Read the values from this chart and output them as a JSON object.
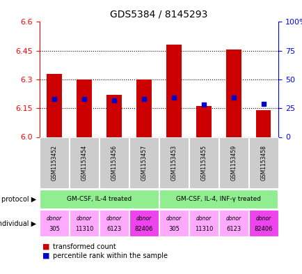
{
  "title": "GDS5384 / 8145293",
  "samples": [
    "GSM1153452",
    "GSM1153454",
    "GSM1153456",
    "GSM1153457",
    "GSM1153453",
    "GSM1153455",
    "GSM1153459",
    "GSM1153458"
  ],
  "red_values": [
    6.33,
    6.3,
    6.22,
    6.3,
    6.48,
    6.163,
    6.455,
    6.14
  ],
  "blue_values_pct": [
    33,
    33,
    32,
    33,
    34,
    28,
    34,
    29
  ],
  "y_min": 6.0,
  "y_max": 6.6,
  "y_ticks_left": [
    6.0,
    6.15,
    6.3,
    6.45,
    6.6
  ],
  "y_ticks_right": [
    0,
    25,
    50,
    75,
    100
  ],
  "bar_color": "#cc0000",
  "dot_color": "#0000cc",
  "protocol_labels": [
    "GM-CSF, IL-4 treated",
    "GM-CSF, IL-4, INF-γ treated"
  ],
  "protocol_groups": [
    4,
    4
  ],
  "protocol_color": "#90ee90",
  "individual_labels": [
    "donor\n305",
    "donor\n11310",
    "donor\n6123",
    "donor\n82406",
    "donor\n305",
    "donor\n11310",
    "donor\n6123",
    "donor\n82406"
  ],
  "individual_colors": [
    "#ffaaff",
    "#ffaaff",
    "#ffaaff",
    "#ee44ee",
    "#ffaaff",
    "#ffaaff",
    "#ffaaff",
    "#ee44ee"
  ],
  "legend_red": "transformed count",
  "legend_blue": "percentile rank within the sample"
}
